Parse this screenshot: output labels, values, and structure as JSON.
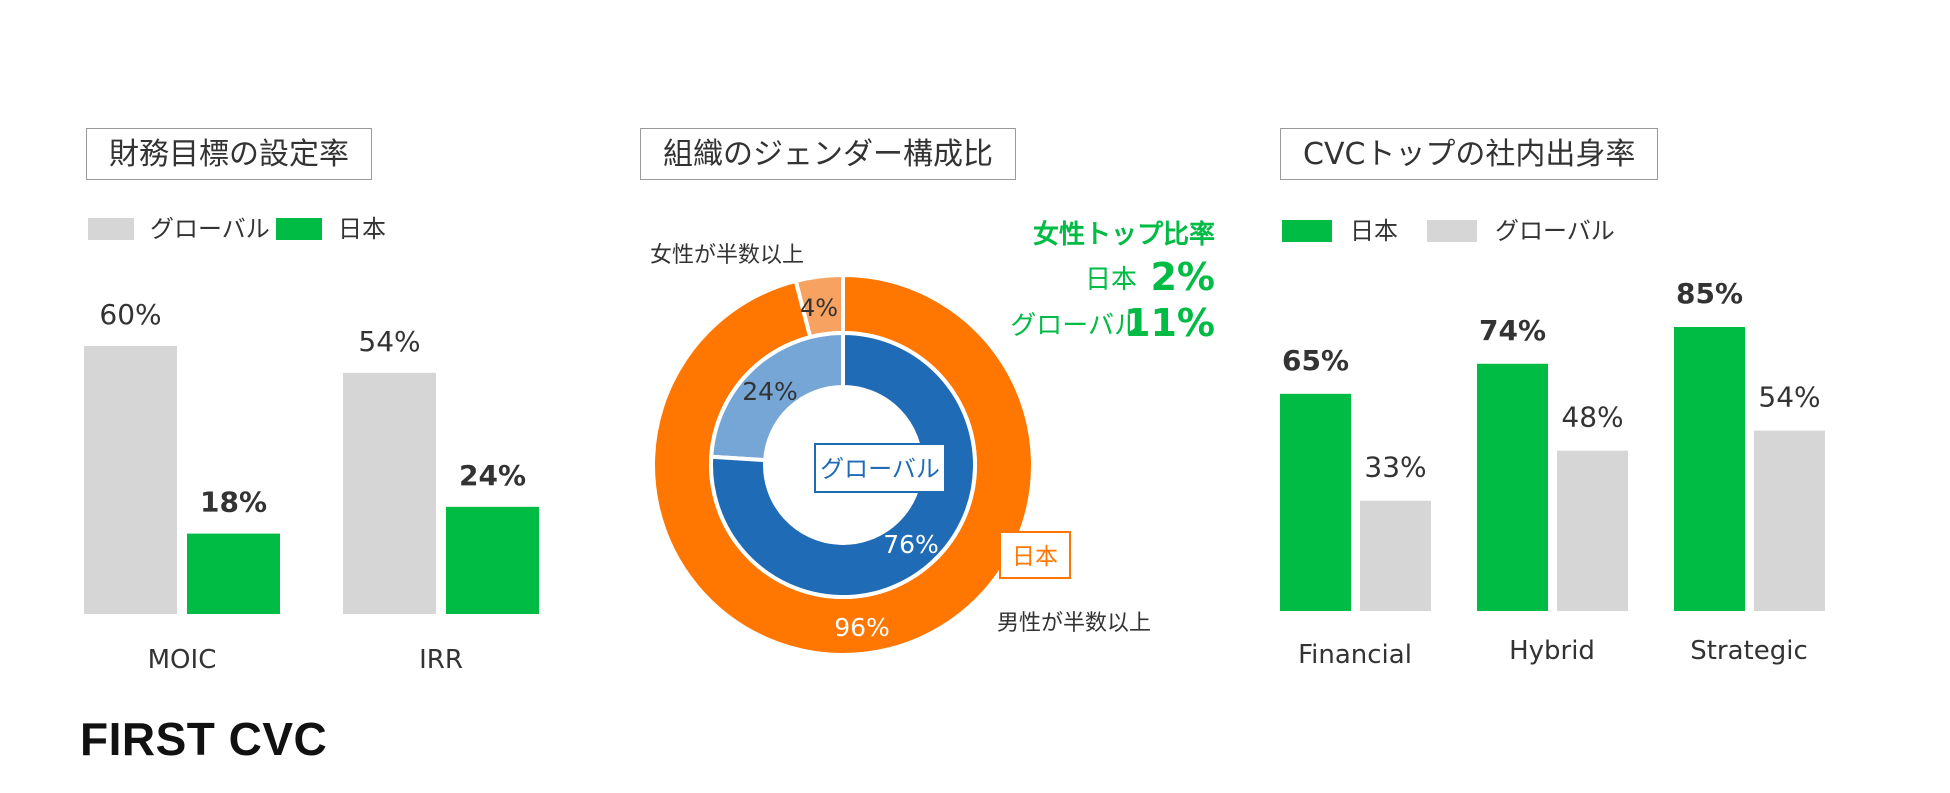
{
  "colors": {
    "green": "#00BB44",
    "gray": "#D6D6D6",
    "orange": "#FF7700",
    "orange_light": "#F7A261",
    "blue": "#1F6BB6",
    "blue_light": "#76A6D6",
    "text": "#333333"
  },
  "brand": "FIRST CVC",
  "chart_data": [
    {
      "type": "bar",
      "title": "財務目標の設定率",
      "legend": [
        "グローバル",
        "日本"
      ],
      "categories": [
        "MOIC",
        "IRR"
      ],
      "series": [
        {
          "name": "グローバル",
          "values": [
            60,
            54
          ],
          "labels": [
            "60%",
            "54%"
          ]
        },
        {
          "name": "日本",
          "values": [
            18,
            24
          ],
          "labels": [
            "18%",
            "24%"
          ]
        }
      ],
      "ylim": [
        0,
        60
      ]
    },
    {
      "type": "pie",
      "title": "組織のジェンダー構成比",
      "rings": [
        {
          "name": "日本",
          "slices": [
            {
              "label": "女性が半数以上",
              "value": 4,
              "text": "4%"
            },
            {
              "label": "男性が半数以上",
              "value": 96,
              "text": "96%"
            }
          ]
        },
        {
          "name": "グローバル",
          "slices": [
            {
              "label": "女性が半数以上",
              "value": 24,
              "text": "24%"
            },
            {
              "label": "男性が半数以上",
              "value": 76,
              "text": "76%"
            }
          ]
        }
      ],
      "annotation": {
        "title": "女性トップ比率",
        "rows": [
          {
            "label": "日本",
            "value": "2%"
          },
          {
            "label": "グローバル",
            "value": "11%"
          }
        ]
      }
    },
    {
      "type": "bar",
      "title": "CVCトップの社内出身率",
      "legend": [
        "日本",
        "グローバル"
      ],
      "categories": [
        "Financial",
        "Hybrid",
        "Strategic"
      ],
      "series": [
        {
          "name": "日本",
          "values": [
            65,
            74,
            85
          ],
          "labels": [
            "65%",
            "74%",
            "85%"
          ]
        },
        {
          "name": "グローバル",
          "values": [
            33,
            48,
            54
          ],
          "labels": [
            "33%",
            "48%",
            "54%"
          ]
        }
      ],
      "ylim": [
        0,
        85
      ]
    }
  ]
}
